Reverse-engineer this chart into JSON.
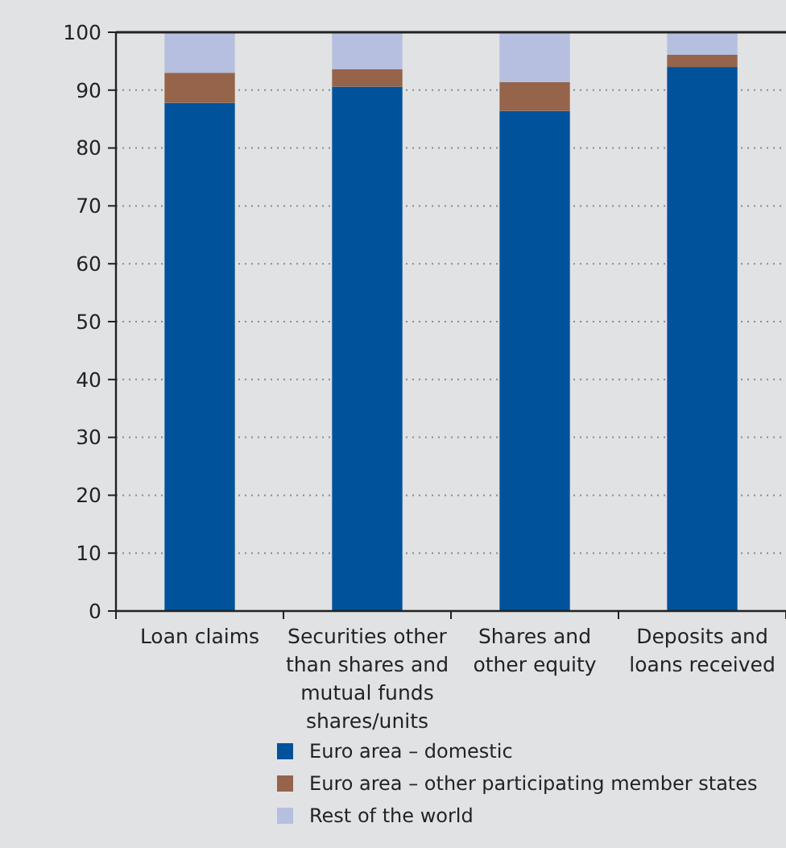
{
  "chart_data": {
    "type": "bar",
    "stacked": true,
    "categories": [
      "Loan claims",
      "Securities other than shares and mutual funds shares/units",
      "Shares and other equity",
      "Deposits and loans received"
    ],
    "series": [
      {
        "name": "Euro area – domestic",
        "color": "#00529b",
        "values": [
          87.8,
          90.6,
          86.4,
          94.0
        ]
      },
      {
        "name": "Euro area – other participating member states",
        "color": "#95644a",
        "values": [
          5.2,
          3.0,
          5.0,
          2.1
        ]
      },
      {
        "name": "Rest of the world",
        "color": "#b6bfdf",
        "values": [
          7.0,
          6.4,
          8.6,
          3.9
        ]
      }
    ],
    "ylim": [
      0,
      100
    ],
    "yticks": [
      0,
      10,
      20,
      30,
      40,
      50,
      60,
      70,
      80,
      90,
      100
    ],
    "grid": "y",
    "legend": "bottom"
  }
}
